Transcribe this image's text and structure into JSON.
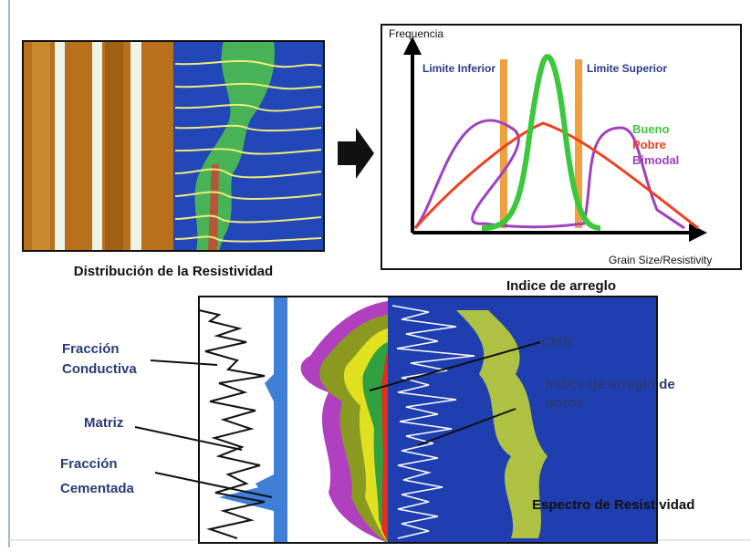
{
  "top_left": {
    "caption": "Distribución de la Resistividad"
  },
  "chart": {
    "caption": "Indice de arreglo",
    "y_axis_label": "Frequencia",
    "x_axis_label": "Grain Size/Resistivity",
    "lower_limit": "Limite Inferior",
    "upper_limit": "Limite Superior",
    "legend": [
      "Bueno",
      "Pobre",
      "Bimodal"
    ]
  },
  "bottom": {
    "labels": {
      "conductive_fraction": [
        "Fracción",
        "Conductiva"
      ],
      "matrix": "Matriz",
      "cemented_fraction": [
        "Fracción",
        "Cementada"
      ],
      "cmr": "CMR",
      "pore_index": [
        "Indice de arreglo de",
        "poros"
      ]
    },
    "caption": "Espectro de Resistividad"
  }
}
